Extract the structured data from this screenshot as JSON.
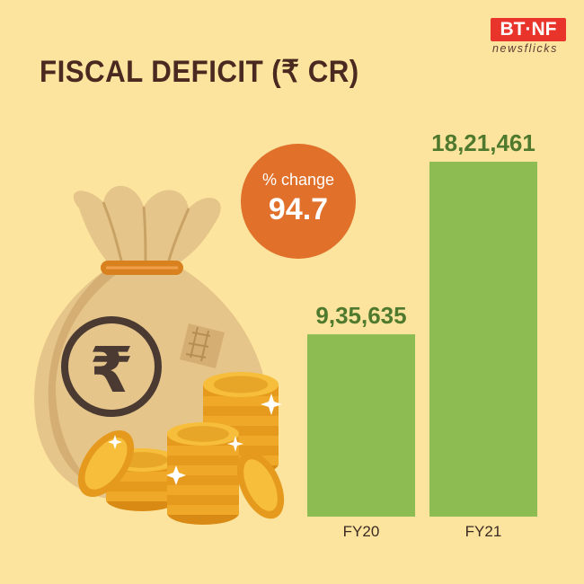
{
  "header": {
    "title": "FISCAL DEFICIT (₹ CR)",
    "logo_top": "BT·NF",
    "logo_bottom": "newsflicks"
  },
  "badge": {
    "label": "% change",
    "value": "94.7"
  },
  "chart_data": {
    "type": "bar",
    "categories": [
      "FY20",
      "FY21"
    ],
    "values": [
      935635,
      1821461
    ],
    "value_labels": [
      "9,35,635",
      "18,21,461"
    ],
    "title": "FISCAL DEFICIT (₹ CR)",
    "xlabel": "",
    "ylabel": "",
    "ylim": [
      0,
      1821461
    ],
    "grid": false,
    "bar_color": "#8DBC53",
    "label_color": "#4F7A2E"
  },
  "illustration": {
    "bag_icon": "money-bag-icon",
    "coin_icon": "coins-icon",
    "symbol": "₹"
  }
}
